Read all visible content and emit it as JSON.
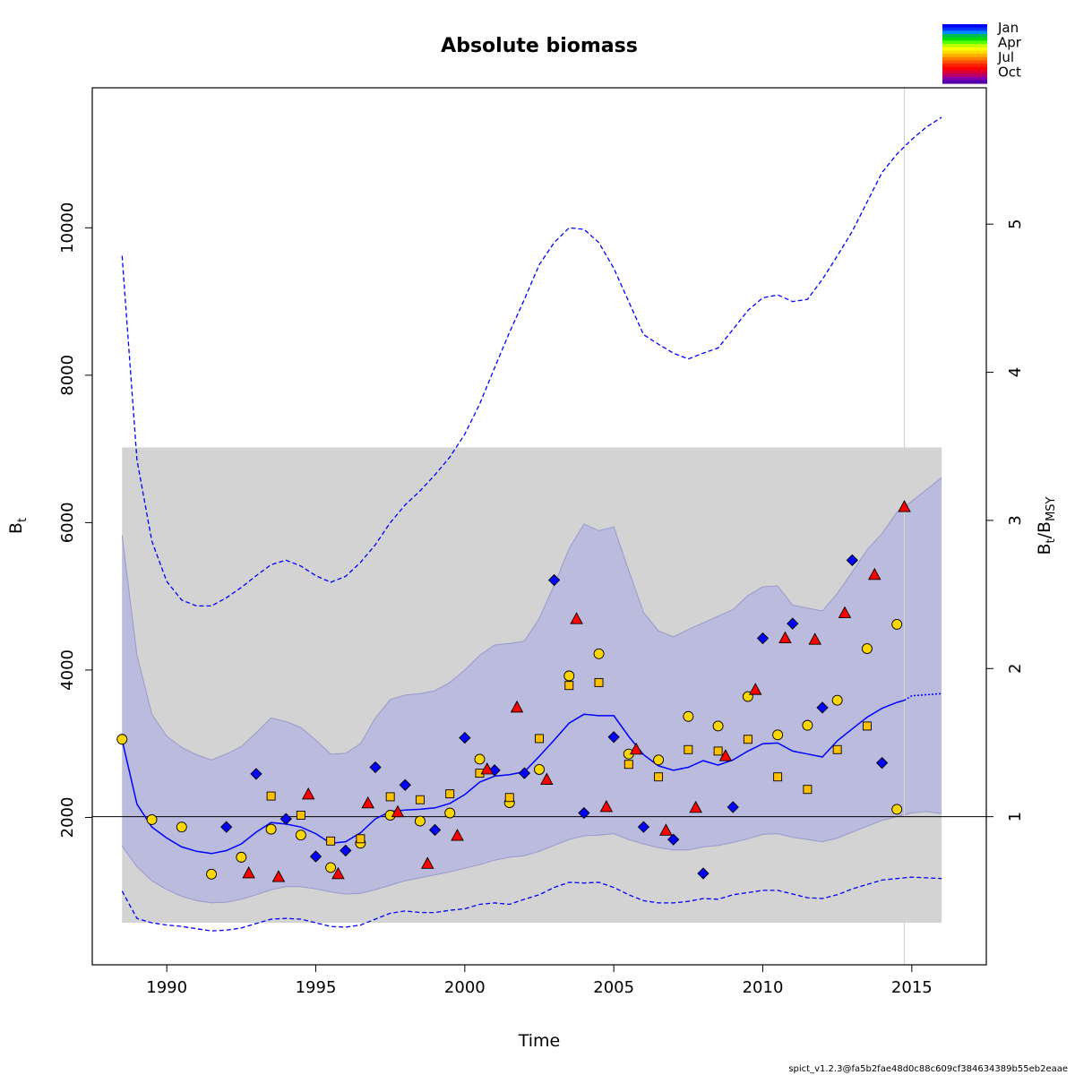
{
  "chart_data": {
    "type": "line",
    "title": "Absolute biomass",
    "xlabel": "Time",
    "ylabel": "B",
    "ylabel_sub": "t",
    "y2label": "B",
    "y2label_sub1": "t",
    "y2label_slash": "/B",
    "y2label_sub2": "MSY",
    "xlim": [
      1987.5,
      2017.5
    ],
    "ylim": [
      0,
      11900
    ],
    "x_ticks": [
      1990,
      1995,
      2000,
      2005,
      2010,
      2015
    ],
    "x_tick_labels": [
      "1990",
      "1995",
      "2000",
      "2005",
      "2010",
      "2015"
    ],
    "y_ticks": [
      2000,
      4000,
      6000,
      8000,
      10000
    ],
    "y_tick_labels": [
      "2000",
      "4000",
      "6000",
      "8000",
      "10000"
    ],
    "y2_ticks": [
      1,
      2,
      3,
      4,
      5
    ],
    "y2_tick_labels": [
      "1",
      "2",
      "3",
      "4",
      "5"
    ],
    "bmsy": 2010,
    "vline_x": 2014.75,
    "bmsy_ci_box": {
      "x": [
        1988.5,
        2016
      ],
      "y": [
        570,
        7020
      ]
    },
    "estimate": {
      "x": [
        1988.5,
        1989,
        1989.5,
        1990,
        1990.5,
        1991,
        1991.5,
        1992,
        1992.5,
        1993,
        1993.5,
        1994,
        1994.5,
        1995,
        1995.5,
        1996,
        1996.5,
        1997,
        1997.5,
        1998,
        1998.5,
        1999,
        1999.5,
        2000,
        2000.5,
        2001,
        2001.5,
        2002,
        2002.5,
        2003,
        2003.5,
        2004,
        2004.5,
        2005,
        2005.5,
        2006,
        2006.5,
        2007,
        2007.5,
        2008,
        2008.5,
        2009,
        2009.5,
        2010,
        2010.5,
        2011,
        2011.5,
        2012,
        2012.5,
        2013,
        2013.5,
        2014,
        2014.5,
        2014.75
      ],
      "y": [
        3050,
        2180,
        1870,
        1720,
        1600,
        1540,
        1510,
        1550,
        1640,
        1800,
        1930,
        1910,
        1870,
        1780,
        1650,
        1670,
        1790,
        1980,
        2080,
        2100,
        2110,
        2130,
        2190,
        2310,
        2480,
        2560,
        2580,
        2620,
        2830,
        3050,
        3280,
        3400,
        3380,
        3380,
        3100,
        2850,
        2700,
        2640,
        2680,
        2770,
        2710,
        2780,
        2900,
        3000,
        3010,
        2900,
        2860,
        2820,
        3040,
        3200,
        3360,
        3480,
        3560,
        3590
      ]
    },
    "estimate_forecast": {
      "x": [
        2014.75,
        2015,
        2016
      ],
      "y": [
        3590,
        3650,
        3680
      ]
    },
    "ci_band": {
      "x": [
        1988.5,
        1989,
        1989.5,
        1990,
        1990.5,
        1991,
        1991.5,
        1992,
        1992.5,
        1993,
        1993.5,
        1994,
        1994.5,
        1995,
        1995.5,
        1996,
        1996.5,
        1997,
        1997.5,
        1998,
        1998.5,
        1999,
        1999.5,
        2000,
        2000.5,
        2001,
        2001.5,
        2002,
        2002.5,
        2003,
        2003.5,
        2004,
        2004.5,
        2005,
        2005.5,
        2006,
        2006.5,
        2007,
        2007.5,
        2008,
        2008.5,
        2009,
        2009.5,
        2010,
        2010.5,
        2011,
        2011.5,
        2012,
        2012.5,
        2013,
        2013.5,
        2014,
        2014.5,
        2015,
        2015.5,
        2016
      ],
      "lo": [
        1610,
        1330,
        1140,
        1020,
        930,
        870,
        840,
        850,
        890,
        950,
        1020,
        1060,
        1060,
        1030,
        990,
        960,
        970,
        1020,
        1080,
        1140,
        1180,
        1220,
        1260,
        1310,
        1360,
        1420,
        1460,
        1480,
        1540,
        1620,
        1700,
        1750,
        1760,
        1780,
        1700,
        1640,
        1590,
        1560,
        1560,
        1600,
        1620,
        1660,
        1710,
        1770,
        1780,
        1730,
        1700,
        1670,
        1720,
        1800,
        1880,
        1960,
        2010,
        2060,
        2080,
        2050
      ],
      "hi": [
        5830,
        4200,
        3400,
        3100,
        2950,
        2850,
        2780,
        2860,
        2960,
        3150,
        3350,
        3300,
        3220,
        3050,
        2860,
        2870,
        3000,
        3350,
        3600,
        3660,
        3680,
        3720,
        3830,
        4000,
        4200,
        4340,
        4360,
        4390,
        4700,
        5150,
        5650,
        5980,
        5890,
        5940,
        5350,
        4780,
        4530,
        4450,
        4550,
        4640,
        4730,
        4820,
        5010,
        5130,
        5140,
        4880,
        4840,
        4800,
        5040,
        5330,
        5630,
        5850,
        6140,
        6290,
        6450,
        6610
      ]
    },
    "ci_outer_upper": {
      "x": [
        1988.5,
        1989,
        1989.5,
        1990,
        1990.5,
        1991,
        1991.5,
        1992,
        1992.5,
        1993,
        1993.5,
        1994,
        1994.5,
        1995,
        1995.5,
        1996,
        1996.5,
        1997,
        1997.5,
        1998,
        1998.5,
        1999,
        1999.5,
        2000,
        2000.5,
        2001,
        2001.5,
        2002,
        2002.5,
        2003,
        2003.5,
        2004,
        2004.5,
        2005,
        2005.5,
        2006,
        2006.5,
        2007,
        2007.5,
        2008,
        2008.5,
        2009,
        2009.5,
        2010,
        2010.5,
        2011,
        2011.5,
        2012,
        2012.5,
        2013,
        2013.5,
        2014,
        2014.5,
        2015,
        2015.5,
        2016
      ],
      "y": [
        9620,
        6850,
        5750,
        5200,
        4950,
        4870,
        4870,
        4980,
        5120,
        5280,
        5430,
        5490,
        5410,
        5280,
        5190,
        5270,
        5460,
        5700,
        6000,
        6240,
        6430,
        6650,
        6890,
        7200,
        7610,
        8100,
        8580,
        9030,
        9500,
        9800,
        10000,
        9980,
        9800,
        9450,
        9000,
        8550,
        8420,
        8300,
        8220,
        8300,
        8370,
        8620,
        8880,
        9050,
        9090,
        9000,
        9030,
        9300,
        9620,
        9950,
        10350,
        10750,
        11000,
        11200,
        11370,
        11500
      ]
    },
    "ci_outer_lower": {
      "x": [
        1988.5,
        1989,
        1989.5,
        1990,
        1990.5,
        1991,
        1991.5,
        1992,
        1992.5,
        1993,
        1993.5,
        1994,
        1994.5,
        1995,
        1995.5,
        1996,
        1996.5,
        1997,
        1997.5,
        1998,
        1998.5,
        1999,
        1999.5,
        2000,
        2000.5,
        2001,
        2001.5,
        2002,
        2002.5,
        2003,
        2003.5,
        2004,
        2004.5,
        2005,
        2005.5,
        2006,
        2006.5,
        2007,
        2007.5,
        2008,
        2008.5,
        2009,
        2009.5,
        2010,
        2010.5,
        2011,
        2011.5,
        2012,
        2012.5,
        2013,
        2013.5,
        2014,
        2014.5,
        2015,
        2015.5,
        2016
      ],
      "y": [
        1000,
        630,
        570,
        540,
        520,
        490,
        460,
        470,
        500,
        560,
        620,
        630,
        620,
        570,
        520,
        510,
        540,
        620,
        700,
        730,
        710,
        710,
        740,
        760,
        820,
        840,
        820,
        890,
        950,
        1050,
        1120,
        1110,
        1120,
        1050,
        950,
        870,
        840,
        840,
        860,
        900,
        890,
        950,
        980,
        1010,
        1010,
        960,
        910,
        900,
        950,
        1030,
        1090,
        1150,
        1170,
        1190,
        1180,
        1170
      ]
    },
    "ci_outer_forecast_from_x": 2014.75,
    "observations": [
      {
        "name": "Jan series",
        "color": "#0000FF",
        "marker": "diamond",
        "points": [
          [
            1992,
            1870
          ],
          [
            1993,
            2590
          ],
          [
            1994,
            1980
          ],
          [
            1995,
            1470
          ],
          [
            1996,
            1550
          ],
          [
            1997,
            2680
          ],
          [
            1998,
            2440
          ],
          [
            1999,
            1830
          ],
          [
            2000,
            3080
          ],
          [
            2001,
            2640
          ],
          [
            2002,
            2600
          ],
          [
            2003,
            5220
          ],
          [
            2004,
            2060
          ],
          [
            2005,
            3090
          ],
          [
            2006,
            1870
          ],
          [
            2007,
            1700
          ],
          [
            2008,
            1240
          ],
          [
            2009,
            2140
          ],
          [
            2010,
            4430
          ],
          [
            2011,
            4630
          ],
          [
            2012,
            3490
          ],
          [
            2013,
            5490
          ],
          [
            2014,
            2740
          ]
        ]
      },
      {
        "name": "Apr series",
        "color": "#FFD700",
        "marker": "circle",
        "points": [
          [
            1988.5,
            3060
          ],
          [
            1989.5,
            1970
          ],
          [
            1990.5,
            1870
          ],
          [
            1991.5,
            1230
          ],
          [
            1992.5,
            1460
          ],
          [
            1993.5,
            1840
          ],
          [
            1994.5,
            1760
          ],
          [
            1995.5,
            1320
          ],
          [
            1996.5,
            1650
          ],
          [
            1997.5,
            2030
          ],
          [
            1998.5,
            1950
          ],
          [
            1999.5,
            2060
          ],
          [
            2000.5,
            2790
          ],
          [
            2001.5,
            2200
          ],
          [
            2002.5,
            2650
          ],
          [
            2003.5,
            3920
          ],
          [
            2004.5,
            4220
          ],
          [
            2005.5,
            2860
          ],
          [
            2006.5,
            2780
          ],
          [
            2007.5,
            3370
          ],
          [
            2008.5,
            3240
          ],
          [
            2009.5,
            3640
          ],
          [
            2010.5,
            3120
          ],
          [
            2011.5,
            3250
          ],
          [
            2012.5,
            3590
          ],
          [
            2013.5,
            4290
          ],
          [
            2014.5,
            2110
          ],
          [
            2014.5,
            4620
          ]
        ]
      },
      {
        "name": "Jul series",
        "color": "#FFC000",
        "marker": "square",
        "points": [
          [
            1993.5,
            2290
          ],
          [
            1994.5,
            2030
          ],
          [
            1995.5,
            1680
          ],
          [
            1996.5,
            1710
          ],
          [
            1997.5,
            2280
          ],
          [
            1998.5,
            2240
          ],
          [
            1999.5,
            2320
          ],
          [
            2000.5,
            2600
          ],
          [
            2001.5,
            2270
          ],
          [
            2002.5,
            3070
          ],
          [
            2003.5,
            3790
          ],
          [
            2004.5,
            3830
          ],
          [
            2005.5,
            2720
          ],
          [
            2006.5,
            2550
          ],
          [
            2007.5,
            2920
          ],
          [
            2008.5,
            2900
          ],
          [
            2009.5,
            3060
          ],
          [
            2010.5,
            2550
          ],
          [
            2011.5,
            2380
          ],
          [
            2012.5,
            2920
          ],
          [
            2013.5,
            3240
          ]
        ]
      },
      {
        "name": "Oct series",
        "color": "#FF0000",
        "marker": "triangle",
        "points": [
          [
            1992.75,
            1240
          ],
          [
            1993.75,
            1190
          ],
          [
            1994.75,
            2310
          ],
          [
            1995.75,
            1230
          ],
          [
            1996.75,
            2190
          ],
          [
            1997.75,
            2070
          ],
          [
            1998.75,
            1370
          ],
          [
            1999.75,
            1750
          ],
          [
            2000.75,
            2650
          ],
          [
            2001.75,
            3490
          ],
          [
            2002.75,
            2510
          ],
          [
            2003.75,
            4690
          ],
          [
            2004.75,
            2140
          ],
          [
            2005.75,
            2920
          ],
          [
            2006.75,
            1820
          ],
          [
            2007.75,
            2130
          ],
          [
            2008.75,
            2830
          ],
          [
            2009.75,
            3730
          ],
          [
            2010.75,
            4430
          ],
          [
            2011.75,
            4410
          ],
          [
            2012.75,
            4770
          ],
          [
            2013.75,
            5290
          ],
          [
            2014.75,
            6210
          ]
        ]
      }
    ],
    "legend": {
      "position": "top-right",
      "labels": [
        "Jan",
        "Apr",
        "Jul",
        "Oct"
      ],
      "colors": [
        "#0000FF",
        "#0033FF",
        "#0088FF",
        "#00BB55",
        "#00DD00",
        "#55FF00",
        "#BBFF00",
        "#FFFF00",
        "#FFDD00",
        "#FFB000",
        "#FF8000",
        "#FF5000",
        "#FF2000",
        "#FF0000",
        "#DD0033",
        "#BB0066",
        "#8800AA",
        "#5500AA"
      ]
    },
    "colors": {
      "estimate": "#0000FF",
      "ci_band_fill": "#BBBBDD",
      "ci_band_edge": "#9999CC",
      "bmsy_box": "#D3D3D3",
      "vline": "#D3D3D3",
      "bmsy_line": "#000000"
    }
  },
  "footer": "spict_v1.2.3@fa5b2fae48d0c88c609cf384634389b55eb2eaae"
}
